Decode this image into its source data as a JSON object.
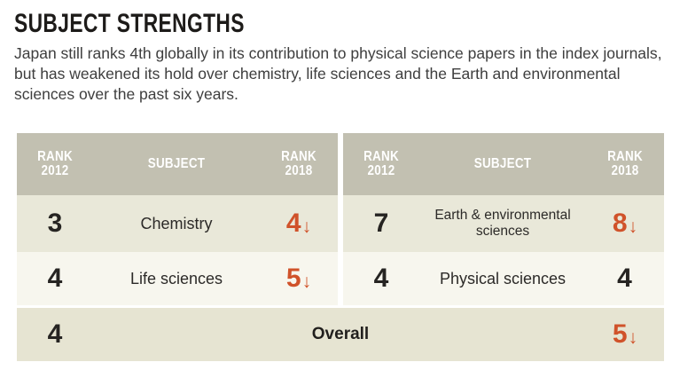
{
  "page": {
    "title": "SUBJECT STRENGTHS",
    "description": "Japan still ranks 4th globally in its contribution to physical science papers in the index journals, but has weakened its hold over chemistry, life sciences and the Earth and environmental sciences over the past six years."
  },
  "table": {
    "header": {
      "rank_label": "RANK",
      "year_start": "2012",
      "year_end": "2018",
      "subject_label": "SUBJECT"
    },
    "left_rows": [
      {
        "rank_2012": "3",
        "subject": "Chemistry",
        "rank_2018": "4",
        "arrow": "↓"
      },
      {
        "rank_2012": "4",
        "subject": "Life sciences",
        "rank_2018": "5",
        "arrow": "↓"
      }
    ],
    "right_rows": [
      {
        "rank_2012": "7",
        "subject": "Earth & environmental sciences",
        "rank_2018": "8",
        "arrow": "↓"
      },
      {
        "rank_2012": "4",
        "subject": "Physical sciences",
        "rank_2018": "4",
        "arrow": ""
      }
    ],
    "overall": {
      "rank_2012": "4",
      "label": "Overall",
      "rank_2018": "5",
      "arrow": "↓"
    }
  },
  "colors": {
    "header_bg": "#c2c0b1",
    "row_cream_bg": "#e9e8d9",
    "row_light_bg": "#f7f6ee",
    "overall_bg": "#e6e4d2",
    "accent_orange": "#d0522a",
    "text_dark": "#262422"
  },
  "chart_data": {
    "type": "table",
    "title": "SUBJECT STRENGTHS",
    "subtitle": "Japan still ranks 4th globally in its contribution to physical science papers in the index journals, but has weakened its hold over chemistry, life sciences and the Earth and environmental sciences over the past six years.",
    "columns": [
      "Rank 2012",
      "Subject",
      "Rank 2018"
    ],
    "rows": [
      {
        "rank_2012": 3,
        "subject": "Chemistry",
        "rank_2018": 4,
        "change": "down"
      },
      {
        "rank_2012": 4,
        "subject": "Life sciences",
        "rank_2018": 5,
        "change": "down"
      },
      {
        "rank_2012": 7,
        "subject": "Earth & environmental sciences",
        "rank_2018": 8,
        "change": "down"
      },
      {
        "rank_2012": 4,
        "subject": "Physical sciences",
        "rank_2018": 4,
        "change": "same"
      },
      {
        "rank_2012": 4,
        "subject": "Overall",
        "rank_2018": 5,
        "change": "down"
      }
    ]
  }
}
